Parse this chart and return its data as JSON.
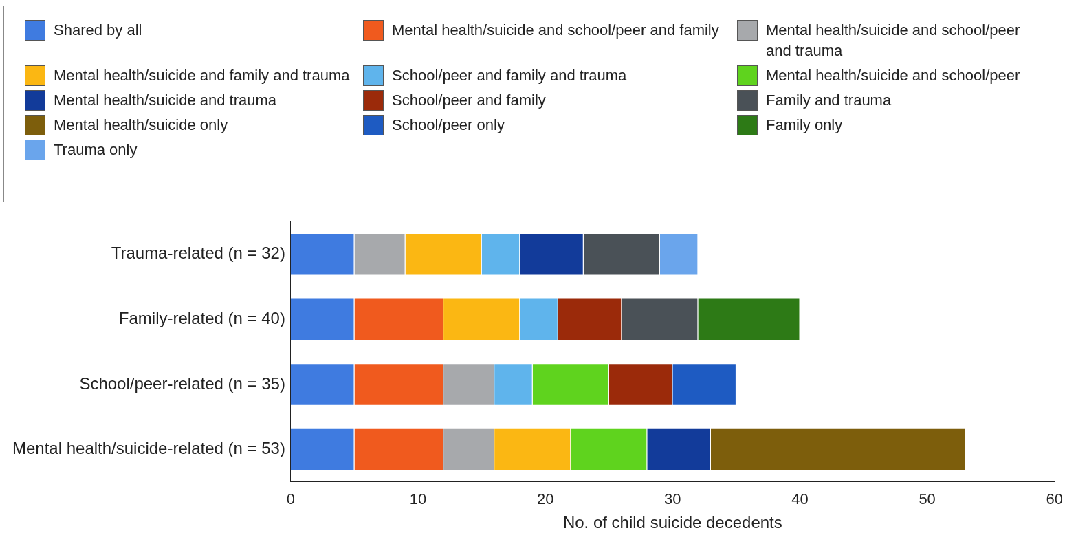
{
  "chart_data": {
    "type": "bar",
    "orientation": "horizontal",
    "stacked": true,
    "xlabel": "No. of child suicide decedents",
    "categories": [
      "Trauma-related (n = 32)",
      "Family-related (n = 40)",
      "School/peer-related (n = 35)",
      "Mental health/suicide-related (n = 53)"
    ],
    "series": [
      {
        "name": "Shared by all",
        "color": "#3f7be0",
        "values": [
          5,
          5,
          5,
          5
        ]
      },
      {
        "name": "Mental health/suicide and school/peer and family",
        "color": "#f05a1e",
        "values": [
          null,
          7,
          7,
          7
        ]
      },
      {
        "name": "Mental health/suicide and school/peer and trauma",
        "color": "#a7a9ac",
        "values": [
          4,
          null,
          4,
          4
        ]
      },
      {
        "name": "Mental health/suicide and family and trauma",
        "color": "#fbb713",
        "values": [
          6,
          6,
          null,
          6
        ]
      },
      {
        "name": "School/peer and family and trauma",
        "color": "#5fb4ec",
        "values": [
          3,
          3,
          3,
          null
        ]
      },
      {
        "name": "Mental health/suicide and school/peer",
        "color": "#5fd31e",
        "values": [
          null,
          null,
          6,
          6
        ]
      },
      {
        "name": "Mental health/suicide and trauma",
        "color": "#123b9a",
        "values": [
          5,
          null,
          null,
          5
        ]
      },
      {
        "name": "School/peer and family",
        "color": "#9b2a0a",
        "values": [
          null,
          5,
          5,
          null
        ]
      },
      {
        "name": "Family and trauma",
        "color": "#4a5157",
        "values": [
          6,
          6,
          null,
          null
        ]
      },
      {
        "name": "Mental health/suicide only",
        "color": "#7d5e0c",
        "values": [
          null,
          null,
          null,
          20
        ]
      },
      {
        "name": "School/peer only",
        "color": "#1e5bc2",
        "values": [
          null,
          null,
          5,
          null
        ]
      },
      {
        "name": "Family only",
        "color": "#2d7a16",
        "values": [
          null,
          8,
          null,
          null
        ]
      },
      {
        "name": "Trauma only",
        "color": "#6aa5ec",
        "values": [
          3,
          null,
          null,
          null
        ]
      }
    ],
    "xlim": [
      0,
      60
    ],
    "xticks": [
      0,
      10,
      20,
      30,
      40,
      50,
      60
    ],
    "grid": false,
    "legend": "top"
  }
}
